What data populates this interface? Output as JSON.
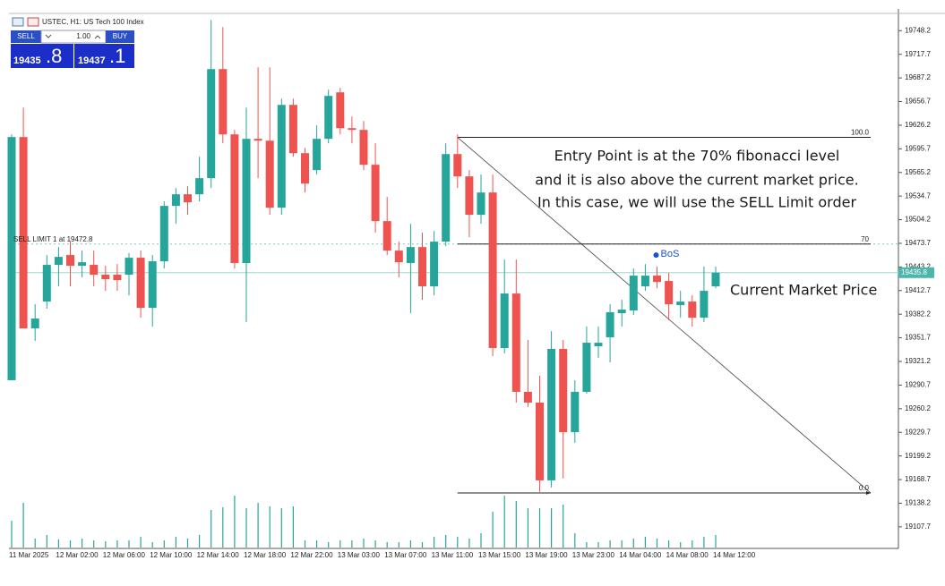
{
  "chart_data": {
    "type": "candlestick",
    "symbol_title": "USTEC, H1:  US Tech 100 Index",
    "trade_panel": {
      "sell": "SELL",
      "buy": "BUY",
      "lot": "1.00",
      "sell_main": "19435",
      "sell_frac": ".8",
      "buy_main": "19437",
      "buy_frac": ".1"
    },
    "up_color": "#26a69a",
    "down_color": "#ef5350",
    "categories": [
      "11 Mar 2025",
      null,
      null,
      null,
      "12 Mar 02:00",
      null,
      null,
      null,
      "12 Mar 06:00",
      null,
      null,
      null,
      "12 Mar 10:00",
      null,
      null,
      null,
      "12 Mar 14:00",
      null,
      null,
      null,
      "12 Mar 18:00",
      null,
      null,
      null,
      "12 Mar 22:00",
      null,
      null,
      null,
      "13 Mar 03:00",
      null,
      null,
      null,
      "13 Mar 07:00",
      null,
      null,
      null,
      "13 Mar 11:00",
      null,
      null,
      null,
      "13 Mar 15:00",
      null,
      null,
      null,
      "13 Mar 19:00",
      null,
      null,
      null,
      "13 Mar 23:00",
      null,
      null,
      null,
      "14 Mar 04:00",
      null,
      null,
      null,
      "14 Mar 08:00",
      null,
      null,
      null,
      "14 Mar 12:00"
    ],
    "open": [
      19297.0,
      19610.9,
      19363.9,
      19398.5,
      19445.9,
      19458.6,
      19444.7,
      19445.9,
      19433.2,
      19433.2,
      19433.2,
      19455.1,
      19390.4,
      19450.5,
      19522.0,
      19537.0,
      19537.0,
      19557.8,
      19698.6,
      19614.3,
      19448.2,
      19608.6,
      19606.2,
      19519.7,
      19652.4,
      19590.1,
      19568.2,
      19608.6,
      19668.6,
      19622.4,
      19620.1,
      19575.1,
      19502.4,
      19464.3,
      19448.2,
      19468.9,
      19418.2,
      19475.9,
      19588.9,
      19560.1,
      19510.5,
      19539.3,
      19338.5,
      19408.9,
      19282.0,
      19268.1,
      19167.7,
      19337.4,
      19230.0,
      19282.0,
      19340.8,
      19352.4,
      19383.5,
      19387.0,
      19418.2,
      19432.0,
      19425.1,
      19393.9,
      19398.5,
      19377.7,
      19418.2
    ],
    "high": [
      19614.3,
      19648.9,
      19395.0,
      19458.6,
      19468.9,
      19475.9,
      19464.3,
      19464.3,
      19444.7,
      19447.0,
      19460.9,
      19464.3,
      19458.6,
      19527.8,
      19545.1,
      19547.4,
      19585.5,
      19762.0,
      19752.8,
      19620.1,
      19648.9,
      19700.9,
      19700.9,
      19660.5,
      19660.5,
      19597.0,
      19625.9,
      19672.0,
      19674.3,
      19637.4,
      19631.6,
      19602.8,
      19533.5,
      19475.9,
      19498.9,
      19487.4,
      19489.7,
      19602.8,
      19614.3,
      19568.2,
      19562.4,
      19562.4,
      19452.8,
      19452.8,
      19348.9,
      19302.7,
      19360.4,
      19348.9,
      19297.0,
      19366.2,
      19366.2,
      19395.0,
      19400.8,
      19441.2,
      19447.0,
      19443.6,
      19435.5,
      19412.4,
      19406.6,
      19443.6,
      19443.6
    ],
    "low": [
      19297.0,
      19363.9,
      19347.7,
      19389.3,
      19418.2,
      19418.2,
      19429.7,
      19418.2,
      19412.4,
      19412.4,
      19406.6,
      19377.7,
      19366.2,
      19441.2,
      19498.9,
      19510.5,
      19527.8,
      19545.1,
      19602.8,
      19441.2,
      19372.0,
      19557.8,
      19510.5,
      19510.5,
      19585.5,
      19539.3,
      19562.4,
      19602.8,
      19614.3,
      19602.8,
      19568.2,
      19487.4,
      19458.6,
      19429.7,
      19383.5,
      19400.8,
      19406.6,
      19470.1,
      19545.1,
      19481.6,
      19498.9,
      19328.1,
      19331.6,
      19268.1,
      19262.3,
      19152.7,
      19158.5,
      19170.0,
      19216.2,
      19279.6,
      19325.8,
      19320.0,
      19366.2,
      19381.2,
      19412.4,
      19415.8,
      19374.3,
      19377.7,
      19366.2,
      19372.0,
      19415.8
    ],
    "close": [
      19610.9,
      19363.9,
      19376.6,
      19445.9,
      19456.2,
      19444.7,
      19449.3,
      19433.2,
      19427.4,
      19426.2,
      19455.1,
      19390.4,
      19450.5,
      19522.0,
      19537.0,
      19526.6,
      19557.8,
      19698.6,
      19614.3,
      19448.2,
      19608.6,
      19606.2,
      19519.7,
      19652.4,
      19590.1,
      19550.8,
      19608.6,
      19664.0,
      19622.4,
      19620.1,
      19575.1,
      19502.4,
      19464.3,
      19449.3,
      19468.9,
      19418.2,
      19475.9,
      19588.9,
      19560.1,
      19510.5,
      19539.3,
      19338.5,
      19408.9,
      19282.0,
      19268.1,
      19167.7,
      19337.4,
      19230.0,
      19282.0,
      19345.4,
      19345.4,
      19384.7,
      19388.1,
      19432.0,
      19432.0,
      19423.9,
      19395.0,
      19398.5,
      19377.7,
      19412.4,
      19435.8
    ],
    "volumes": [
      30,
      50,
      10,
      14,
      9,
      8,
      10,
      8,
      7,
      8,
      8,
      12,
      6,
      8,
      12,
      10,
      14,
      42,
      45,
      58,
      44,
      50,
      46,
      44,
      46,
      8,
      8,
      6,
      8,
      8,
      10,
      8,
      6,
      6,
      8,
      6,
      12,
      14,
      12,
      10,
      16,
      40,
      58,
      52,
      44,
      44,
      44,
      48,
      16,
      6,
      6,
      8,
      8,
      10,
      12,
      10,
      8,
      6,
      8,
      12,
      14
    ],
    "vlim": [
      0,
      60
    ],
    "volume_color": "#26a69a",
    "ylim": [
      19081,
      19767
    ],
    "yticks": [
      19748.2,
      19717.7,
      19687.2,
      19656.7,
      19626.2,
      19595.7,
      19565.2,
      19534.7,
      19504.2,
      19473.7,
      19443.2,
      19412.7,
      19382.2,
      19351.7,
      19321.2,
      19290.7,
      19260.2,
      19229.7,
      19199.2,
      19168.7,
      19138.2,
      19107.7
    ],
    "current_price": 19435.8,
    "sell_limit": {
      "price": 19472.8,
      "label": "SELL LIMIT 1 at 19472.8"
    },
    "fibonacci": {
      "high": 19610.5,
      "low": 19151.5,
      "start_index": 38,
      "levels": [
        {
          "value": 100,
          "label": "100.0"
        },
        70,
        {
          "value": 0,
          "label": "0.0"
        }
      ]
    },
    "bos": {
      "label": "BoS",
      "index": 55,
      "price": 19447.0
    },
    "annotations": [
      "Entry Point is at the 70% fibonacci level",
      "and it is also above the current market price.",
      "In this case, we will use the SELL Limit order",
      "Current Market Price"
    ]
  }
}
